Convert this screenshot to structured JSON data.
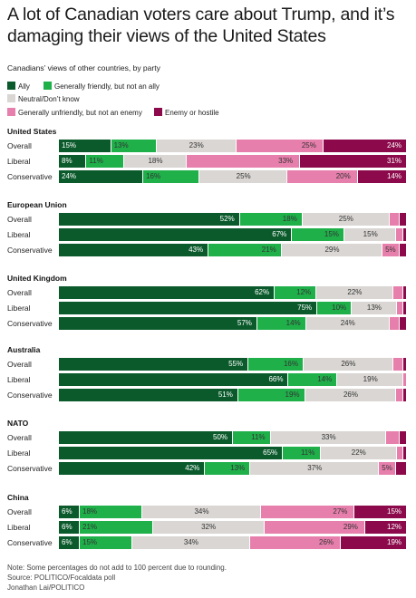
{
  "title": "A lot of Canadian voters care about Trump, and it’s damaging their views of the United States",
  "subtitle": "Canadians’ views of other countries, by party",
  "colors": {
    "ally": "#0a5a2b",
    "friendly": "#1fb04a",
    "neutral": "#d9d6d3",
    "unfriendly": "#e77fac",
    "enemy": "#8c0a4b"
  },
  "footer": {
    "note": "Note: Some percentages do not add to 100 percent due to rounding.",
    "source": "Source: POLITICO/Focaldata poll",
    "credit": "Jonathan Lai/POLITICO"
  },
  "chart_data": {
    "type": "bar",
    "stacked": "horizontal-100-percent",
    "legend": [
      {
        "key": "ally",
        "label": "Ally"
      },
      {
        "key": "friendly",
        "label": "Generally friendly, but not an ally"
      },
      {
        "key": "neutral",
        "label": "Neutral/Don’t know"
      },
      {
        "key": "unfriendly",
        "label": "Generally unfriendly, but not an enemy"
      },
      {
        "key": "enemy",
        "label": "Enemy or hostile"
      }
    ],
    "legend_placement": "top",
    "groups": [
      {
        "name": "United States",
        "rows": [
          {
            "label": "Overall",
            "values": [
              15,
              13,
              23,
              25,
              24
            ]
          },
          {
            "label": "Liberal",
            "values": [
              8,
              11,
              18,
              33,
              31
            ]
          },
          {
            "label": "Conservative",
            "values": [
              24,
              16,
              25,
              20,
              14
            ]
          }
        ]
      },
      {
        "name": "European Union",
        "rows": [
          {
            "label": "Overall",
            "values": [
              52,
              18,
              25,
              3,
              2
            ]
          },
          {
            "label": "Liberal",
            "values": [
              67,
              15,
              15,
              2,
              1
            ]
          },
          {
            "label": "Conservative",
            "values": [
              43,
              21,
              29,
              5,
              2
            ]
          }
        ]
      },
      {
        "name": "United Kingdom",
        "rows": [
          {
            "label": "Overall",
            "values": [
              62,
              12,
              22,
              3,
              1
            ]
          },
          {
            "label": "Liberal",
            "values": [
              75,
              10,
              13,
              2,
              1
            ]
          },
          {
            "label": "Conservative",
            "values": [
              57,
              14,
              24,
              3,
              2
            ]
          }
        ]
      },
      {
        "name": "Australia",
        "rows": [
          {
            "label": "Overall",
            "values": [
              55,
              16,
              26,
              3,
              1
            ]
          },
          {
            "label": "Liberal",
            "values": [
              66,
              14,
              19,
              1,
              0
            ]
          },
          {
            "label": "Conservative",
            "values": [
              51,
              19,
              26,
              2,
              1
            ]
          }
        ]
      },
      {
        "name": "NATO",
        "rows": [
          {
            "label": "Overall",
            "values": [
              50,
              11,
              33,
              4,
              2
            ]
          },
          {
            "label": "Liberal",
            "values": [
              65,
              11,
              22,
              2,
              1
            ]
          },
          {
            "label": "Conservative",
            "values": [
              42,
              13,
              37,
              5,
              3
            ]
          }
        ]
      },
      {
        "name": "China",
        "rows": [
          {
            "label": "Overall",
            "values": [
              6,
              18,
              34,
              27,
              15
            ]
          },
          {
            "label": "Liberal",
            "values": [
              6,
              21,
              32,
              29,
              12
            ]
          },
          {
            "label": "Conservative",
            "values": [
              6,
              15,
              34,
              26,
              19
            ]
          }
        ]
      }
    ]
  }
}
